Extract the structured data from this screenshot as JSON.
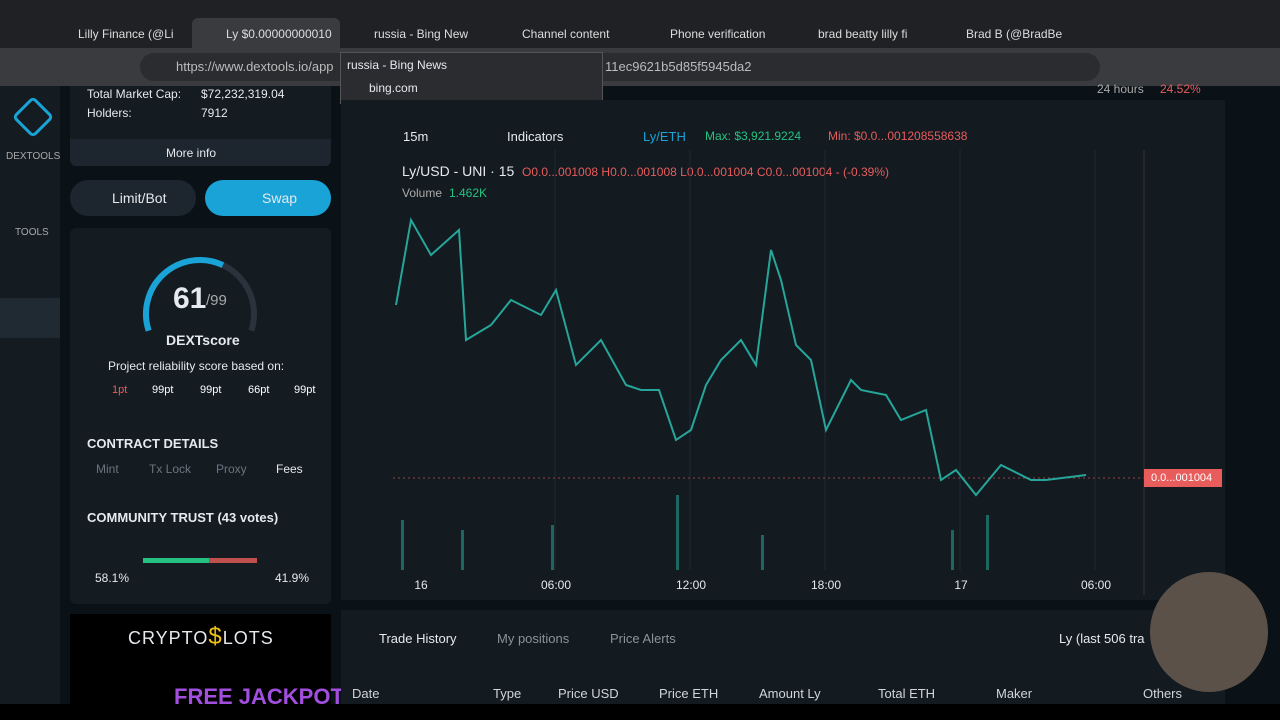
{
  "browser": {
    "tabs": [
      "Lilly Finance (@Li",
      "Ly $0.00000000010",
      "russia - Bing New",
      "Channel content",
      "Phone verification",
      "brad beatty lilly fi",
      "Brad B (@BradBe"
    ],
    "address": "https://www.dextools.io/app",
    "address_tail": "11ec9621b5d85f5945da2",
    "tooltip": {
      "title": "russia - Bing News",
      "url": "bing.com"
    }
  },
  "sidebar": {
    "brand": "DEXTOOLS",
    "section": "TOOLS"
  },
  "panel": {
    "market_cap_label": "Total Market Cap:",
    "market_cap": "$72,232,319.04",
    "holders_label": "Holders:",
    "holders": "7912",
    "more_info": "More info",
    "limit_bot": "Limit/Bot",
    "swap": "Swap",
    "score": 61,
    "score_max": "/99",
    "score_total": 99,
    "score_name": "DEXTscore",
    "score_caption": "Project reliability score based on:",
    "score_parts": [
      "1pt",
      "99pt",
      "99pt",
      "66pt",
      "99pt"
    ],
    "contract_title": "CONTRACT DETAILS",
    "contract_items": [
      "Mint",
      "Tx Lock",
      "Proxy",
      "Fees"
    ],
    "trust_title": "COMMUNITY TRUST (43 votes)",
    "trust_up": 58.1,
    "trust_up_label": "58.1%",
    "trust_down": 41.9,
    "trust_down_label": "41.9%",
    "ad_brand_a": "CRYPTO",
    "ad_brand_b": "$",
    "ad_brand_c": "LOTS",
    "ad_text": "FREE JACKPOT"
  },
  "chart": {
    "period": "24 hours",
    "change": "24.52%",
    "interval": "15m",
    "indicators": "Indicators",
    "pair_alt": "Ly/ETH",
    "max": "Max: $3,921.9224",
    "min": "Min: $0.0...001208558638",
    "legend": "Ly/USD - UNI · 15",
    "open": "O0.0...001008",
    "high": "H0.0...001008",
    "low": "L0.0...001004",
    "close": "C0.0...001004",
    "delta": "- (-0.39%)",
    "volume_label": "Volume",
    "volume": "1.462K",
    "price_tag": "0.0...001004",
    "x_labels": [
      "16",
      "06:00",
      "12:00",
      "18:00",
      "17",
      "06:00"
    ]
  },
  "trades": {
    "tabs": [
      "Trade History",
      "My positions",
      "Price Alerts"
    ],
    "summary": "Ly (last 506 tra",
    "columns": [
      "Date",
      "Type",
      "Price USD",
      "Price ETH",
      "Amount Ly",
      "Total ETH",
      "Maker",
      "Others"
    ]
  }
}
